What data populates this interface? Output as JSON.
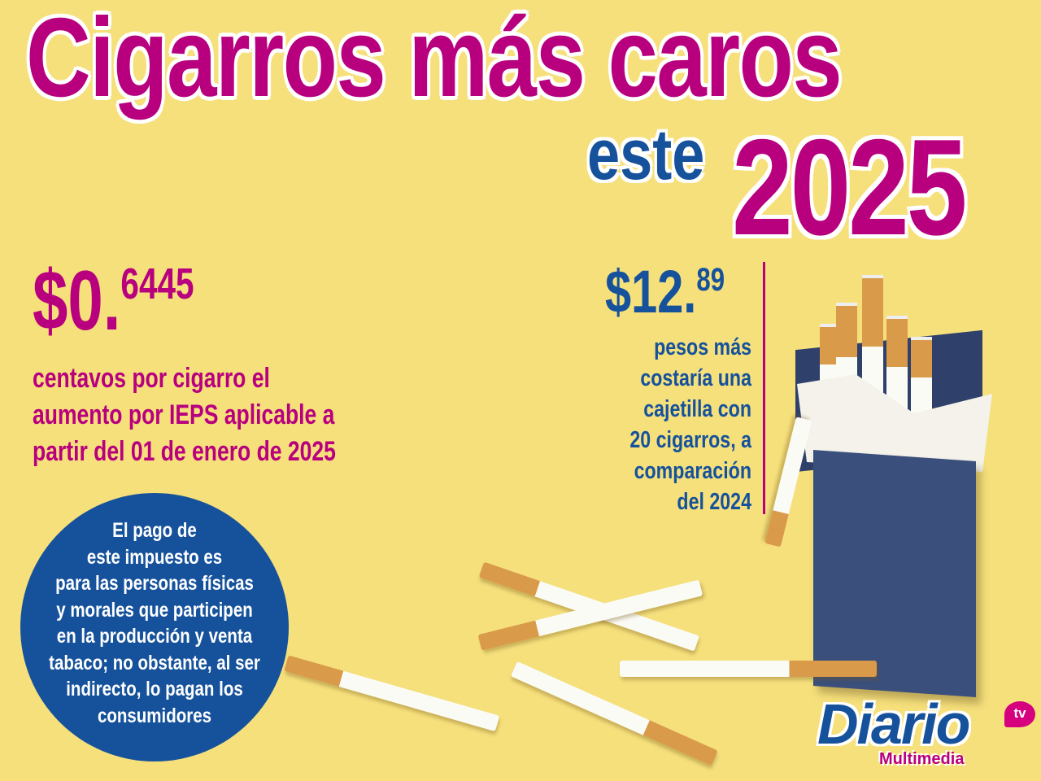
{
  "headline": {
    "line1": "Cigarros más caros",
    "este": "este",
    "year": "2025"
  },
  "stat_left": {
    "integer": "$0.",
    "decimals": "6445",
    "description_lines": [
      "centavos por cigarro el",
      "aumento por IEPS aplicable a",
      "partir del 01 de enero de 2025"
    ]
  },
  "stat_right": {
    "integer": "$12.",
    "decimals": "89",
    "description_lines": [
      "pesos más",
      "costaría una",
      "cajetilla con",
      "20 cigarros, a",
      "comparación",
      "del 2024"
    ]
  },
  "circle_note": {
    "lines": [
      "El pago de",
      "este impuesto es",
      "para las personas físicas",
      "y morales que participen",
      "en la producción y venta",
      "tabaco; no obstante, al ser",
      "indirecto, lo pagan los",
      "consumidores"
    ]
  },
  "logo": {
    "name": "Diario",
    "sub": "Multimedia",
    "badge": "tv"
  },
  "colors": {
    "background": "#f6e07c",
    "magenta": "#b8007f",
    "blue": "#16529b"
  }
}
